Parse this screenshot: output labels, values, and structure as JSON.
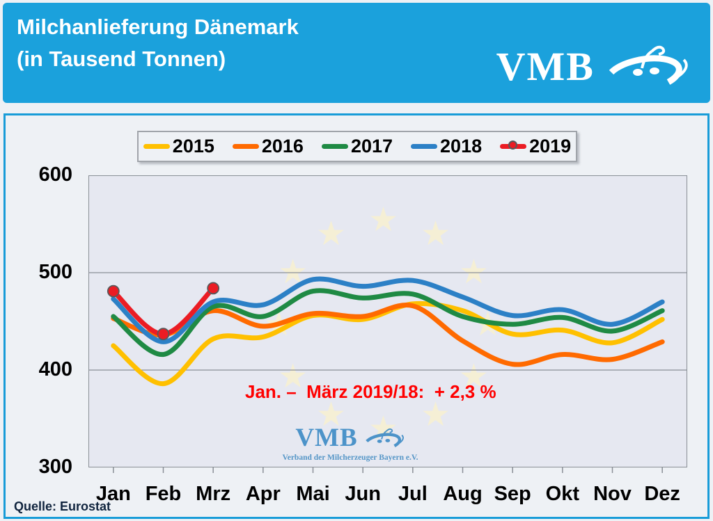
{
  "header": {
    "title_line1": "Milchanlieferung Dänemark",
    "title_line2": "(in Tausend Tonnen)",
    "logo_text": "VMB"
  },
  "watermark": {
    "logo_text": "VMB",
    "caption": "Verband der Milcherzeuger Bayern e.V."
  },
  "annotation": {
    "text": "Jan. –  März 2019/18:  + 2,3 %",
    "color": "#ff0000"
  },
  "source": {
    "text": "Quelle: Eurostat"
  },
  "colors": {
    "header_background": "#1ba1dc",
    "panel_border": "#189cd8",
    "plot_background": "#e6e8f1",
    "gridline": "#8a8f96",
    "star_watermark": "#f5efd5",
    "marker_edge": "#58595b"
  },
  "chart_data": {
    "type": "line",
    "title": "Milchanlieferung Dänemark (in Tausend Tonnen)",
    "xlabel": "",
    "ylabel": "",
    "ylim": [
      300,
      600
    ],
    "yticks": [
      300,
      400,
      500,
      600
    ],
    "grid": true,
    "legend_position": "top",
    "categories": [
      "Jan",
      "Feb",
      "Mrz",
      "Apr",
      "Mai",
      "Jun",
      "Jul",
      "Aug",
      "Sep",
      "Okt",
      "Nov",
      "Dez"
    ],
    "series": [
      {
        "name": "2015",
        "color": "#ffc000",
        "marker": false,
        "values": [
          425,
          386,
          432,
          434,
          456,
          452,
          468,
          461,
          437,
          441,
          428,
          452
        ]
      },
      {
        "name": "2016",
        "color": "#ff6a00",
        "marker": false,
        "values": [
          453,
          436,
          461,
          445,
          458,
          455,
          466,
          430,
          406,
          416,
          411,
          429
        ]
      },
      {
        "name": "2017",
        "color": "#1f8a44",
        "marker": false,
        "values": [
          455,
          416,
          465,
          455,
          481,
          474,
          478,
          455,
          447,
          454,
          440,
          461
        ]
      },
      {
        "name": "2018",
        "color": "#2c80c6",
        "marker": false,
        "values": [
          473,
          429,
          470,
          467,
          493,
          486,
          492,
          475,
          456,
          462,
          447,
          470
        ]
      },
      {
        "name": "2019",
        "color": "#eb1c24",
        "marker": true,
        "values": [
          481,
          437,
          484
        ]
      }
    ]
  }
}
